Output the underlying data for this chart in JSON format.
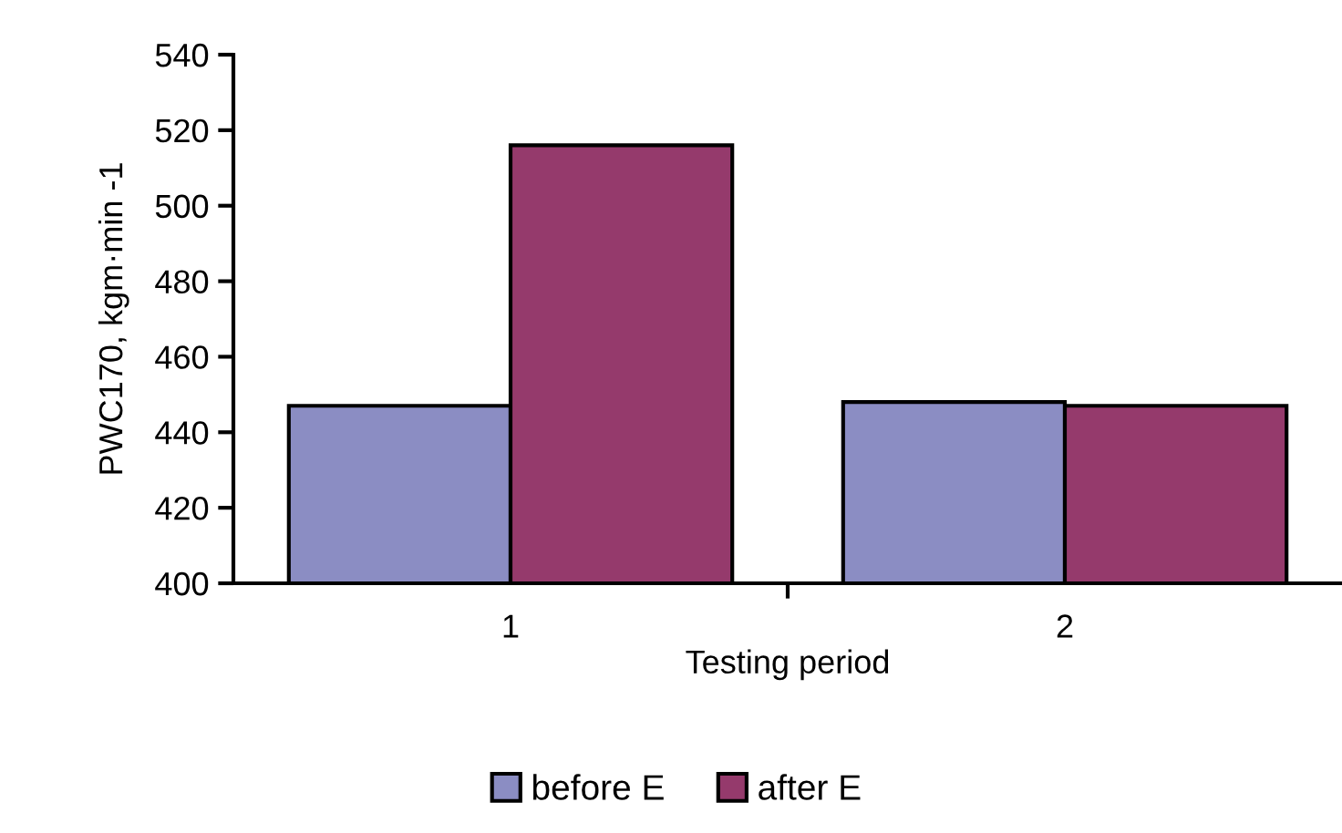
{
  "chart_data": {
    "type": "bar",
    "xlabel": "Testing period",
    "ylabel": "PWC170, kgm·min -1",
    "categories": [
      "1",
      "2"
    ],
    "series": [
      {
        "name": "before E",
        "color": "#8b8dc3",
        "values": [
          447,
          448
        ]
      },
      {
        "name": "after E",
        "color": "#953a6c",
        "values": [
          516,
          447
        ]
      }
    ],
    "ylim": [
      400,
      540
    ],
    "yticks": [
      400,
      420,
      440,
      460,
      480,
      500,
      520,
      540
    ],
    "grid": false,
    "legend": "bottom"
  }
}
